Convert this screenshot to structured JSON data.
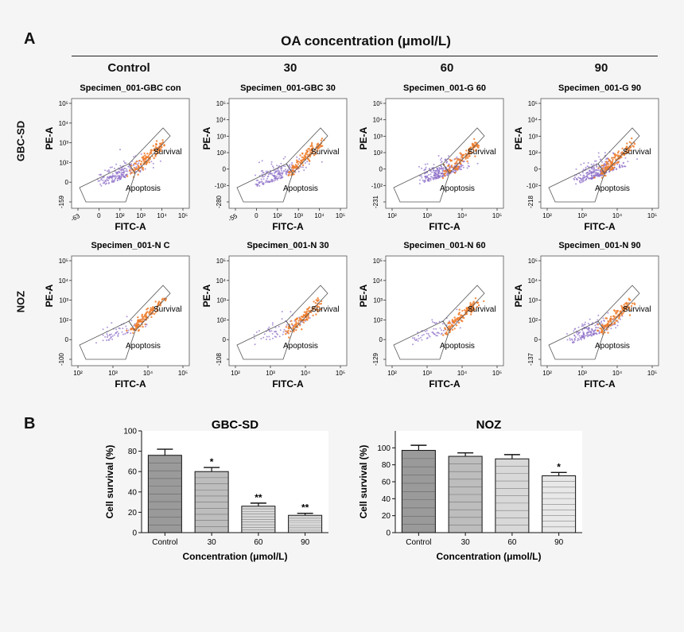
{
  "panel_a": {
    "letter": "A",
    "title": "OA concentration (μmol/L)",
    "columns": [
      "Control",
      "30",
      "60",
      "90"
    ],
    "row_labels": [
      "GBC-SD",
      "NOZ"
    ]
  },
  "panel_b": {
    "letter": "B"
  },
  "chart_data": [
    {
      "type": "scatter",
      "title": "Specimen_001-GBC con",
      "xlabel": "FITC-A",
      "ylabel": "PE-A",
      "x_ticks": [
        "-63",
        "0",
        "10²",
        "10³",
        "10⁴",
        "10⁵"
      ],
      "y_ticks": [
        "-159",
        "0",
        "10²",
        "10³",
        "10⁴",
        "10⁵"
      ],
      "gates": [
        "Survival",
        "Apoptosis"
      ]
    },
    {
      "type": "scatter",
      "title": "Specimen_001-GBC 30",
      "xlabel": "FITC-A",
      "ylabel": "PE-A",
      "x_ticks": [
        "-55",
        "0",
        "10²",
        "10³",
        "10⁴",
        "10⁵"
      ],
      "y_ticks": [
        "-280",
        "-10²",
        "0",
        "10²",
        "10³",
        "10⁴",
        "10⁵"
      ],
      "gates": [
        "Survival",
        "Apoptosis"
      ]
    },
    {
      "type": "scatter",
      "title": "Specimen_001-G 60",
      "xlabel": "FITC-A",
      "ylabel": "PE-A",
      "x_ticks": [
        "10²",
        "10³",
        "10⁴",
        "10⁵"
      ],
      "y_ticks": [
        "-231",
        "-10²",
        "0",
        "10²",
        "10³",
        "10⁴",
        "10⁵"
      ],
      "gates": [
        "Survival",
        "Apoptosis"
      ]
    },
    {
      "type": "scatter",
      "title": "Specimen_001-G 90",
      "xlabel": "FITC-A",
      "ylabel": "PE-A",
      "x_ticks": [
        "10²",
        "10³",
        "10⁴",
        "10⁵"
      ],
      "y_ticks": [
        "-218",
        "-10²",
        "0",
        "10²",
        "10³",
        "10⁴",
        "10⁵"
      ],
      "gates": [
        "Survival",
        "Apoptosis"
      ]
    },
    {
      "type": "scatter",
      "title": "Specimen_001-N C",
      "xlabel": "FITC-A",
      "ylabel": "PE-A",
      "x_ticks": [
        "10²",
        "10³",
        "10⁴",
        "10⁵"
      ],
      "y_ticks": [
        "-100",
        "0",
        "10²",
        "10³",
        "10⁴",
        "10⁵"
      ],
      "gates": [
        "Survival",
        "Apoptosis"
      ]
    },
    {
      "type": "scatter",
      "title": "Specimen_001-N 30",
      "xlabel": "FITC-A",
      "ylabel": "PE-A",
      "x_ticks": [
        "10²",
        "10³",
        "10⁴",
        "10⁵"
      ],
      "y_ticks": [
        "-108",
        "0",
        "10²",
        "10³",
        "10⁴",
        "10⁵"
      ],
      "gates": [
        "Survival",
        "Apoptosis"
      ]
    },
    {
      "type": "scatter",
      "title": "Specimen_001-N 60",
      "xlabel": "FITC-A",
      "ylabel": "PE-A",
      "x_ticks": [
        "10²",
        "10³",
        "10⁴",
        "10⁵"
      ],
      "y_ticks": [
        "-129",
        "0",
        "10²",
        "10³",
        "10⁴",
        "10⁵"
      ],
      "gates": [
        "Survival",
        "Apoptosis"
      ]
    },
    {
      "type": "scatter",
      "title": "Specimen_001-N 90",
      "xlabel": "FITC-A",
      "ylabel": "PE-A",
      "x_ticks": [
        "10²",
        "10³",
        "10⁴",
        "10⁵"
      ],
      "y_ticks": [
        "-137",
        "0",
        "10²",
        "10³",
        "10⁴",
        "10⁵"
      ],
      "gates": [
        "Survival",
        "Apoptosis"
      ]
    },
    {
      "type": "bar",
      "title": "GBC-SD",
      "categories": [
        "Control",
        "30",
        "60",
        "90"
      ],
      "values": [
        76,
        60,
        26,
        17
      ],
      "errors": [
        6,
        4,
        3,
        2
      ],
      "significance": [
        "",
        "*",
        "**",
        "**"
      ],
      "xlabel": "Concentration (μmol/L)",
      "ylabel": "Cell survival (%)",
      "ylim": [
        0,
        100
      ],
      "yticks": [
        "0",
        "20",
        "40",
        "60",
        "80",
        "100"
      ]
    },
    {
      "type": "bar",
      "title": "NOZ",
      "categories": [
        "Control",
        "30",
        "60",
        "90"
      ],
      "values": [
        97,
        90,
        87,
        67
      ],
      "errors": [
        6,
        4,
        5,
        4
      ],
      "significance": [
        "",
        "",
        "",
        "*"
      ],
      "xlabel": "Concentration (μmol/L)",
      "ylabel": "Cell survival (%)",
      "ylim": [
        0,
        120
      ],
      "yticks": [
        "0",
        "20",
        "40",
        "60",
        "80",
        "100"
      ]
    }
  ]
}
